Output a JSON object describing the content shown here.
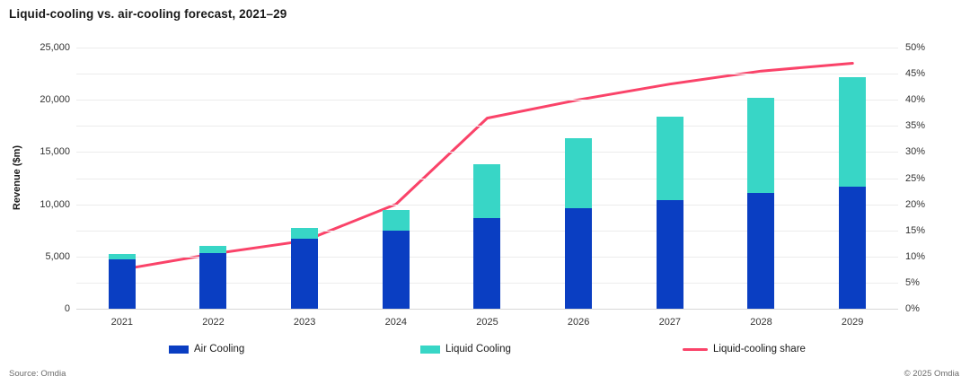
{
  "header": {
    "title": "Liquid-cooling vs. air-cooling forecast, 2021–29"
  },
  "footer": {
    "source": "Source: Omdia",
    "copyright": "© 2025 Omdia"
  },
  "colors": {
    "air_bar": "#0a3ec2",
    "liquid_bar": "#38d6c6",
    "share_line": "#fa4369",
    "gridline": "#ececec",
    "axis_line": "#d7d7d7"
  },
  "chart_data": {
    "type": "bar",
    "subtype": "stacked-bars-with-secondary-axis-line",
    "title": "Liquid-cooling vs. air-cooling forecast, 2021–29",
    "categories": [
      "2021",
      "2022",
      "2023",
      "2024",
      "2025",
      "2026",
      "2027",
      "2028",
      "2029"
    ],
    "series": [
      {
        "name": "Air Cooling",
        "type": "bar",
        "stack": "revenue",
        "color": "#0a3ec2",
        "values": [
          4700,
          5350,
          6700,
          7500,
          8700,
          9650,
          10400,
          11100,
          11700
        ]
      },
      {
        "name": "Liquid Cooling",
        "type": "bar",
        "stack": "revenue",
        "color": "#38d6c6",
        "values": [
          550,
          700,
          1000,
          1950,
          5100,
          6650,
          8000,
          9100,
          10450
        ]
      },
      {
        "name": "Liquid-cooling share",
        "type": "line",
        "axis": "secondary",
        "color": "#fa4369",
        "values_percent": [
          7.5,
          10.5,
          13,
          20,
          36.5,
          40,
          43,
          45.5,
          47
        ]
      }
    ],
    "ylabel": "Revenue ($m)",
    "y_axis": {
      "min": 0,
      "max": 25000,
      "labeled_ticks": [
        0,
        5000,
        10000,
        15000,
        20000,
        25000
      ],
      "gridline_step": 2500
    },
    "y2_axis": {
      "min": 0,
      "max": 50,
      "tick_step": 5,
      "tick_suffix": "%"
    },
    "grid": true,
    "legend_position": "bottom"
  }
}
